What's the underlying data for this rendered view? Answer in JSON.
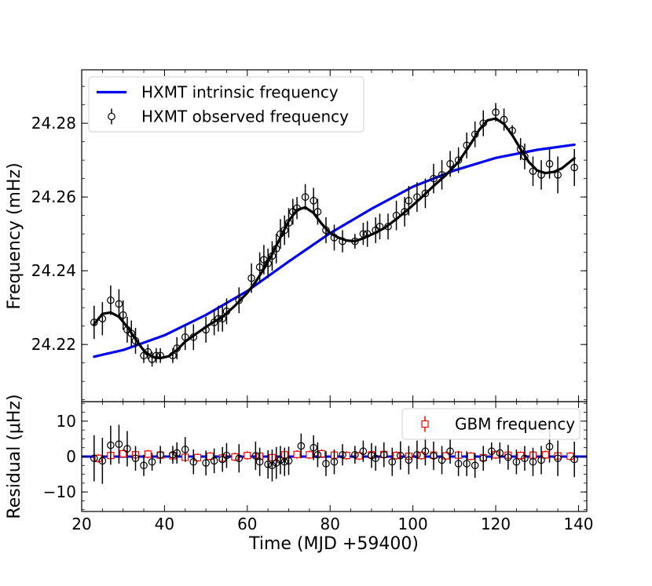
{
  "chart_data": [
    {
      "type": "line",
      "panel": "top",
      "xlabel": "",
      "ylabel": "Frequency (mHz)",
      "xlim": [
        20,
        142
      ],
      "ylim": [
        24.2045,
        24.2945
      ],
      "xticks": [
        20,
        40,
        60,
        80,
        100,
        120,
        140
      ],
      "yticks": [
        24.22,
        24.24,
        24.26,
        24.28
      ],
      "ytick_labels": [
        "24.22",
        "24.24",
        "24.26",
        "24.28"
      ],
      "legend_position": "top-left",
      "grid": false,
      "series": [
        {
          "name": "HXMT intrinsic frequency",
          "kind": "line",
          "color": "#0000ee",
          "x": [
            23,
            30,
            40,
            50,
            60,
            70,
            80,
            90,
            100,
            110,
            120,
            130,
            139
          ],
          "y": [
            24.2167,
            24.2185,
            24.2225,
            24.228,
            24.2345,
            24.2425,
            24.2502,
            24.2568,
            24.2628,
            24.2672,
            24.2706,
            24.2728,
            24.2742
          ]
        },
        {
          "name": "",
          "kind": "line",
          "color": "#000000",
          "x": [
            23,
            25,
            27,
            29,
            31,
            33,
            35,
            37,
            39,
            41,
            43,
            45,
            48,
            51,
            54,
            57,
            60,
            62,
            64,
            66,
            68,
            70,
            72,
            74,
            76,
            78,
            80,
            82,
            84,
            86,
            88,
            90,
            93,
            96,
            99,
            102,
            105,
            108,
            111,
            114,
            116,
            118,
            120,
            122,
            124,
            126,
            128,
            130,
            132,
            134,
            136,
            139
          ],
          "y": [
            24.2255,
            24.2283,
            24.2287,
            24.2275,
            24.2248,
            24.2215,
            24.2183,
            24.2167,
            24.2163,
            24.2168,
            24.2185,
            24.2208,
            24.2232,
            24.2255,
            24.2275,
            24.2305,
            24.234,
            24.237,
            24.2405,
            24.2445,
            24.249,
            24.2535,
            24.2565,
            24.2572,
            24.2557,
            24.2527,
            24.2502,
            24.249,
            24.2482,
            24.248,
            24.2488,
            24.2498,
            24.2515,
            24.254,
            24.2568,
            24.2598,
            24.263,
            24.266,
            24.2695,
            24.2745,
            24.2782,
            24.2808,
            24.2813,
            24.2798,
            24.2768,
            24.273,
            24.2695,
            24.2672,
            24.2665,
            24.2668,
            24.2678,
            24.2705
          ]
        },
        {
          "name": "HXMT observed frequency",
          "kind": "errorbar",
          "marker": "circle",
          "color": "#000000",
          "x": [
            23,
            25,
            27,
            29,
            30,
            31,
            32,
            33,
            35,
            36,
            37,
            38,
            39,
            42,
            43,
            45,
            47,
            50,
            52,
            53,
            54,
            55,
            58,
            61,
            63,
            64,
            65,
            66,
            67,
            68,
            69,
            70,
            71,
            72,
            74,
            76,
            77,
            79,
            81,
            83,
            86,
            88,
            89,
            91,
            92,
            94,
            96,
            98,
            99,
            101,
            103,
            105,
            107,
            109,
            111,
            113,
            115,
            117,
            120,
            122,
            124,
            126,
            127,
            129,
            131,
            133,
            135,
            139
          ],
          "y": [
            24.226,
            24.227,
            24.232,
            24.231,
            24.228,
            24.224,
            24.223,
            24.221,
            24.217,
            24.218,
            24.216,
            24.217,
            24.217,
            24.217,
            24.219,
            24.222,
            24.222,
            24.224,
            24.226,
            24.227,
            24.227,
            24.229,
            24.232,
            24.238,
            24.241,
            24.243,
            24.242,
            24.244,
            24.246,
            24.25,
            24.251,
            24.253,
            24.256,
            24.257,
            24.26,
            24.259,
            24.256,
            24.251,
            24.249,
            24.248,
            24.248,
            24.25,
            24.25,
            24.251,
            24.252,
            24.252,
            24.255,
            24.256,
            24.259,
            24.26,
            24.261,
            24.265,
            24.266,
            24.269,
            24.27,
            24.274,
            24.277,
            24.28,
            24.283,
            24.281,
            24.278,
            24.273,
            24.271,
            24.267,
            24.266,
            24.269,
            24.266,
            24.268
          ],
          "yerr": [
            0.0045,
            0.0045,
            0.004,
            0.004,
            0.004,
            0.0035,
            0.0035,
            0.0035,
            0.002,
            0.002,
            0.002,
            0.002,
            0.002,
            0.002,
            0.003,
            0.0035,
            0.0035,
            0.0035,
            0.0035,
            0.0035,
            0.0035,
            0.0035,
            0.0035,
            0.004,
            0.004,
            0.004,
            0.004,
            0.004,
            0.004,
            0.004,
            0.004,
            0.004,
            0.0035,
            0.003,
            0.0035,
            0.0035,
            0.0035,
            0.0035,
            0.0035,
            0.003,
            0.002,
            0.003,
            0.0035,
            0.0035,
            0.0035,
            0.0035,
            0.004,
            0.004,
            0.004,
            0.004,
            0.004,
            0.004,
            0.004,
            0.0035,
            0.0035,
            0.0035,
            0.0035,
            0.0035,
            0.0025,
            0.003,
            0.0015,
            0.003,
            0.0035,
            0.004,
            0.004,
            0.004,
            0.005,
            0.005
          ]
        }
      ]
    },
    {
      "type": "scatter",
      "panel": "bottom",
      "xlabel": "Time (MJD +59400)",
      "ylabel": "Residual (μHz)",
      "xlim": [
        20,
        142
      ],
      "ylim": [
        -15.5,
        15.5
      ],
      "xticks": [
        20,
        40,
        60,
        80,
        100,
        120,
        140
      ],
      "xtick_labels": [
        "20",
        "40",
        "60",
        "80",
        "100",
        "120",
        "140"
      ],
      "yticks": [
        -10,
        0,
        10
      ],
      "ytick_labels": [
        "−10",
        "0",
        "10"
      ],
      "legend_position": "top-right",
      "grid": false,
      "zero_line_color": "#0000ee",
      "series": [
        {
          "name": "GBM frequency",
          "kind": "errorbar",
          "marker": "square",
          "color": "#ff0000",
          "x": [
            24,
            27,
            30,
            33,
            36,
            39,
            42,
            45,
            48,
            51,
            54,
            57,
            60,
            63,
            66,
            69,
            72,
            75,
            78,
            81,
            84,
            87,
            90,
            93,
            96,
            99,
            102,
            105,
            108,
            111,
            114,
            117,
            120,
            123,
            126,
            129,
            132,
            135,
            138
          ],
          "y": [
            -0.5,
            0.3,
            0.8,
            0.5,
            0.7,
            0.4,
            0.2,
            -0.2,
            -0.3,
            0.1,
            -0.4,
            -0.1,
            0.3,
            0.1,
            -0.3,
            0.5,
            0.6,
            0.5,
            0.8,
            0.4,
            0.3,
            0.2,
            0.5,
            0.6,
            0.3,
            0.1,
            0.3,
            0.4,
            0.2,
            0.4,
            0.1,
            -0.3,
            0.5,
            0.4,
            0.3,
            0.4,
            0.5,
            0.2,
            0.1
          ],
          "yerr": [
            1.2,
            1.2,
            1.2,
            1.2,
            1.2,
            1.2,
            1.2,
            1.2,
            1.2,
            1.2,
            1.2,
            1.2,
            1.2,
            1.2,
            1.2,
            1.2,
            1.2,
            1.2,
            1.2,
            1.2,
            1.2,
            1.2,
            1.2,
            1.2,
            1.2,
            1.2,
            1.2,
            1.2,
            1.2,
            1.2,
            1.2,
            1.2,
            1.2,
            1.2,
            1.2,
            1.2,
            1.2,
            1.2,
            1.2
          ]
        },
        {
          "name": "",
          "kind": "errorbar",
          "marker": "circle",
          "color": "#000000",
          "x": [
            23,
            25,
            27,
            29,
            31,
            33,
            35,
            37,
            39,
            42,
            43,
            45,
            47,
            50,
            52,
            54,
            55,
            58,
            62,
            63,
            65,
            66,
            67,
            68,
            69,
            70,
            73,
            76,
            77,
            79,
            81,
            83,
            86,
            88,
            90,
            91,
            93,
            95,
            97,
            99,
            101,
            103,
            105,
            107,
            109,
            111,
            113,
            115,
            117,
            119,
            121,
            123,
            125,
            127,
            129,
            131,
            133,
            135,
            139
          ],
          "y": [
            -0.5,
            -1.2,
            3.2,
            3.5,
            2.2,
            -0.5,
            -2.5,
            -1.5,
            0.5,
            0.5,
            1.0,
            2.0,
            -1.5,
            -1.8,
            -1.2,
            -0.8,
            0.3,
            -0.5,
            0.2,
            -1.5,
            -2.2,
            -2.5,
            -1.8,
            -1.0,
            -1.5,
            -1.2,
            3.0,
            2.5,
            0.5,
            -2.0,
            -1.5,
            0.5,
            0.5,
            1.5,
            0.3,
            -0.5,
            0.5,
            -1.5,
            0.3,
            -1.0,
            0.5,
            1.5,
            0.2,
            -1.0,
            1.5,
            -2.0,
            -2.0,
            -2.5,
            -0.5,
            1.5,
            1.0,
            -0.2,
            -1.5,
            -0.5,
            -1.5,
            -1.0,
            2.8,
            -0.5,
            -0.8
          ],
          "yerr": [
            6.5,
            6.5,
            5.5,
            5.5,
            5.0,
            3.5,
            3.0,
            2.5,
            2.5,
            2.5,
            3.0,
            3.5,
            3.5,
            3.5,
            3.5,
            3.5,
            3.5,
            4.0,
            4.0,
            4.0,
            4.0,
            4.5,
            4.5,
            4.0,
            4.0,
            4.0,
            3.5,
            3.5,
            3.5,
            3.5,
            3.5,
            3.0,
            2.5,
            3.0,
            3.5,
            3.5,
            3.5,
            4.0,
            4.0,
            4.0,
            4.0,
            4.0,
            4.0,
            4.0,
            3.5,
            3.5,
            3.5,
            3.5,
            3.5,
            2.5,
            3.0,
            3.5,
            3.5,
            3.5,
            4.0,
            4.0,
            4.5,
            5.0,
            5.0
          ]
        }
      ]
    }
  ]
}
